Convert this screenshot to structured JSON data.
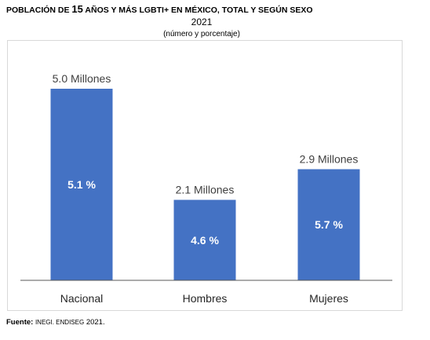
{
  "header": {
    "title_part1": "POBLACIÓN DE ",
    "title_num": "15",
    "title_part2": " AÑOS Y MÁS LGBTI+ EN MÉXICO, TOTAL Y SEGÚN SEXO",
    "year": "2021",
    "subtitle": "(número y porcentaje)"
  },
  "chart_data": {
    "type": "bar",
    "categories": [
      "Nacional",
      "Hombres",
      "Mujeres"
    ],
    "values": [
      5.0,
      2.1,
      2.9
    ],
    "value_labels": [
      "5.0 Millones",
      "2.1 Millones",
      "2.9 Millones"
    ],
    "percent_labels": [
      "5.1 %",
      "4.6 %",
      "5.7 %"
    ],
    "ylim": [
      0,
      5.0
    ],
    "grid": false,
    "bar_color": "#4472c4",
    "axis_color": "#595959",
    "label_color": "#404040"
  },
  "footer": {
    "source_label": "Fuente:",
    "source_text": "INEGI. ENDISEG",
    "source_year": " 2021."
  }
}
